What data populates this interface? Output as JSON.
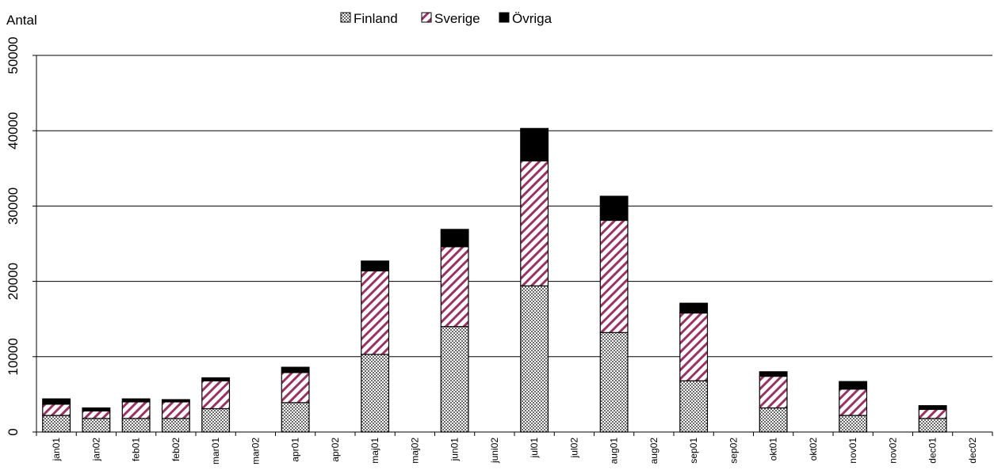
{
  "chart_data": {
    "type": "bar",
    "stacked": true,
    "ylabel": "Antal",
    "ylim": [
      0,
      50000
    ],
    "yticks": [
      0,
      10000,
      20000,
      30000,
      40000,
      50000
    ],
    "grid": true,
    "legend_position": "top-center",
    "categories": [
      "jan01",
      "jan02",
      "feb01",
      "feb02",
      "mar01",
      "mar02",
      "apr01",
      "apr02",
      "maj01",
      "maj02",
      "jun01",
      "juni02",
      "jul01",
      "jul02",
      "aug01",
      "aug02",
      "sep01",
      "sep02",
      "okt01",
      "okt02",
      "nov01",
      "nov02",
      "dec01",
      "dec02"
    ],
    "series": [
      {
        "name": "Finland",
        "pattern": "checker",
        "color": "#808080",
        "values": [
          2200,
          1800,
          1800,
          1800,
          3100,
          0,
          3900,
          0,
          10300,
          0,
          14000,
          0,
          19400,
          0,
          13200,
          0,
          6800,
          0,
          3200,
          0,
          2200,
          0,
          1800,
          0
        ]
      },
      {
        "name": "Sverige",
        "pattern": "diagonal",
        "color": "#993366",
        "values": [
          1500,
          1000,
          2200,
          2200,
          3700,
          0,
          4000,
          0,
          11100,
          0,
          10600,
          0,
          16600,
          0,
          14900,
          0,
          9000,
          0,
          4200,
          0,
          3500,
          0,
          1200,
          0
        ]
      },
      {
        "name": "Övriga",
        "pattern": "solid",
        "color": "#000000",
        "values": [
          700,
          400,
          400,
          300,
          400,
          0,
          700,
          0,
          1300,
          0,
          2300,
          0,
          4300,
          0,
          3200,
          0,
          1300,
          0,
          600,
          0,
          1000,
          0,
          500,
          0
        ]
      }
    ]
  }
}
